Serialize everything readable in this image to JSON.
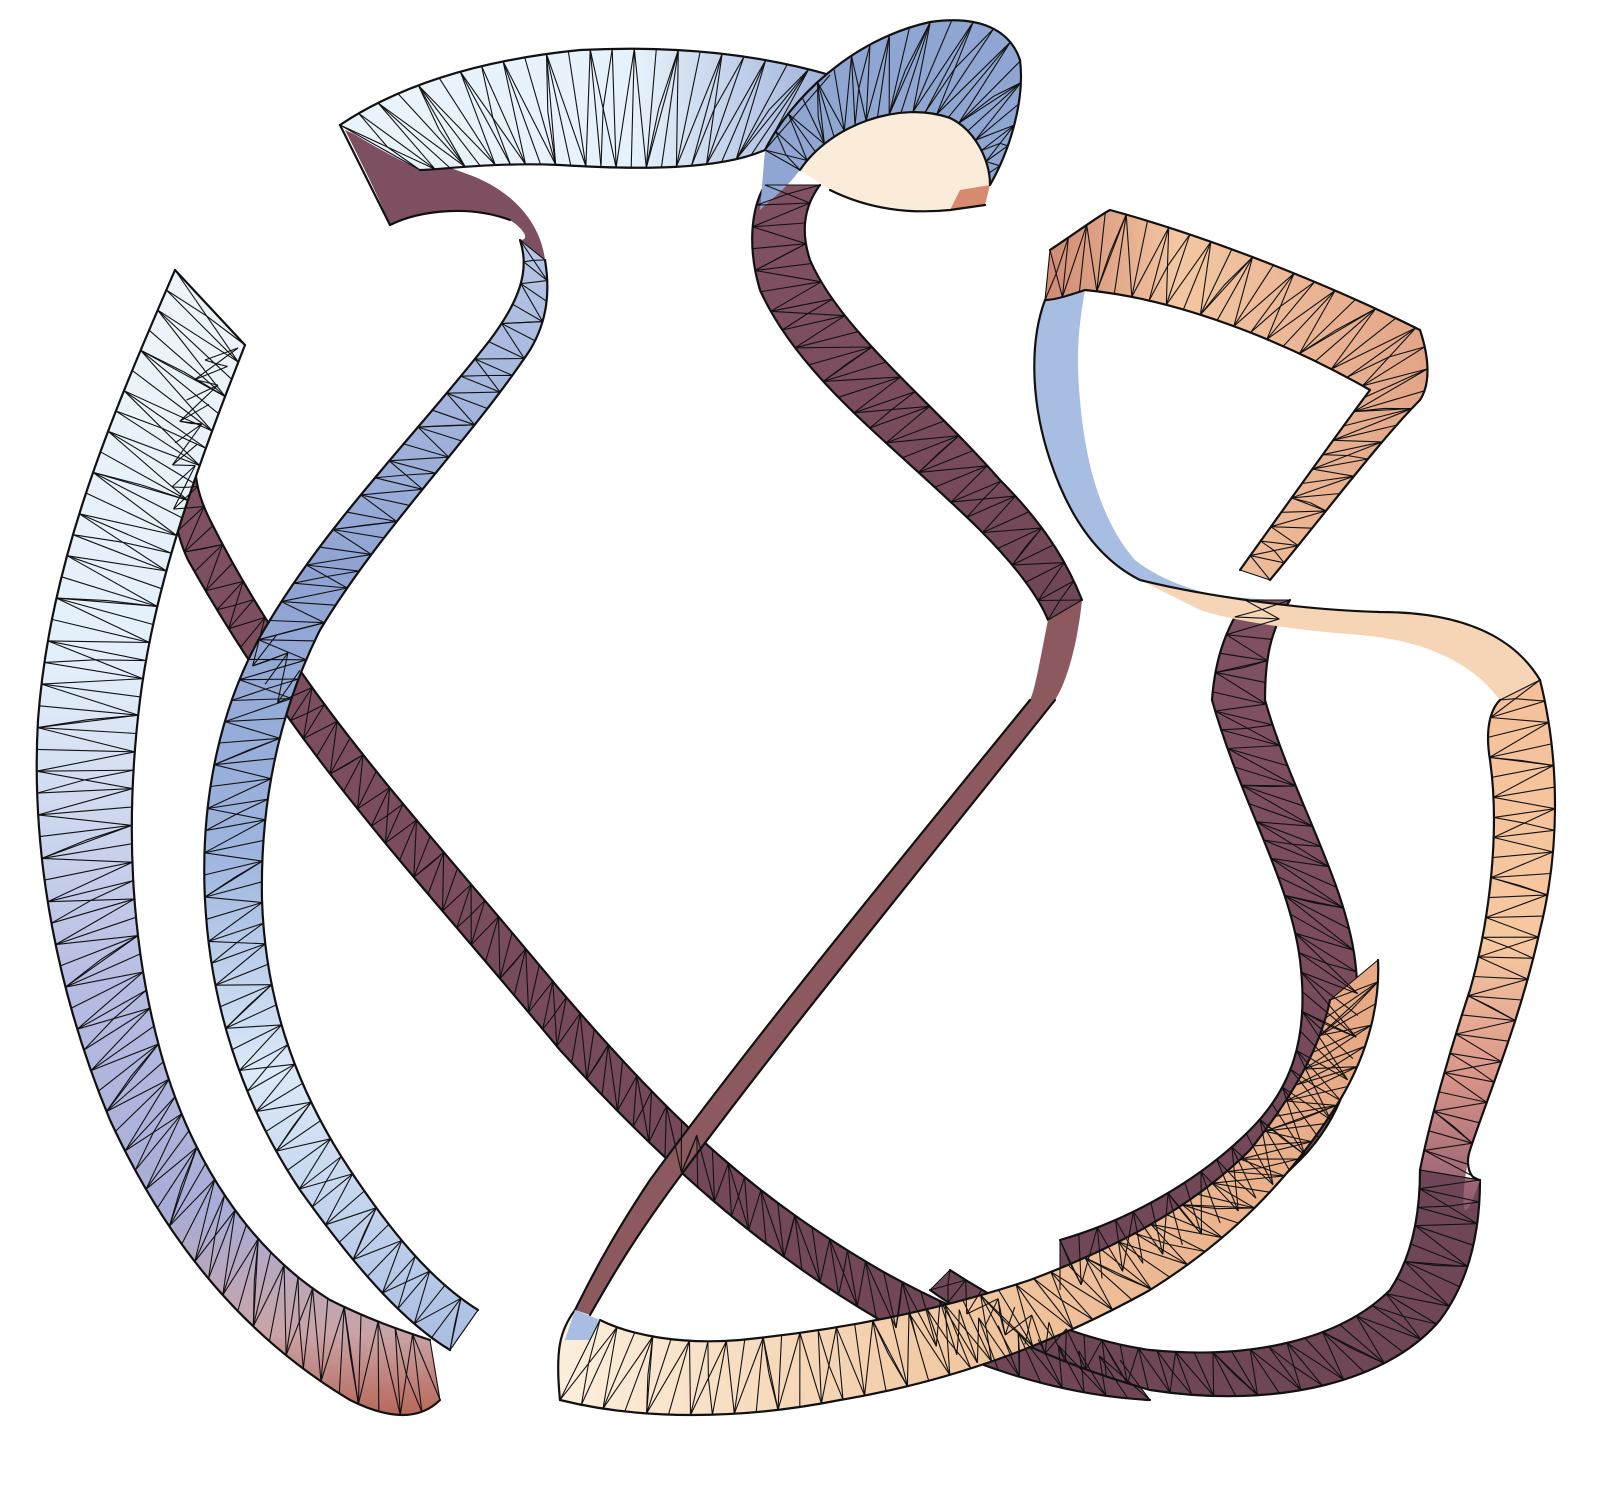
{
  "figure": {
    "kind": "3D rendered ribbon surface",
    "style": "triangulated mesh with black wireframe edges",
    "background": "#ffffff",
    "mesh_edge_color": "#111111",
    "colors": {
      "light_blue": "#e4f1fb",
      "periwinkle": "#9aaad6",
      "steel_blue": "#8fa5d0",
      "dark_mauve": "#7a4d5e",
      "deep_mauve": "#6e4556",
      "rose": "#b8725f",
      "peach": "#f1c39a",
      "cream": "#fbecd6",
      "salmon": "#d48f7a"
    }
  }
}
